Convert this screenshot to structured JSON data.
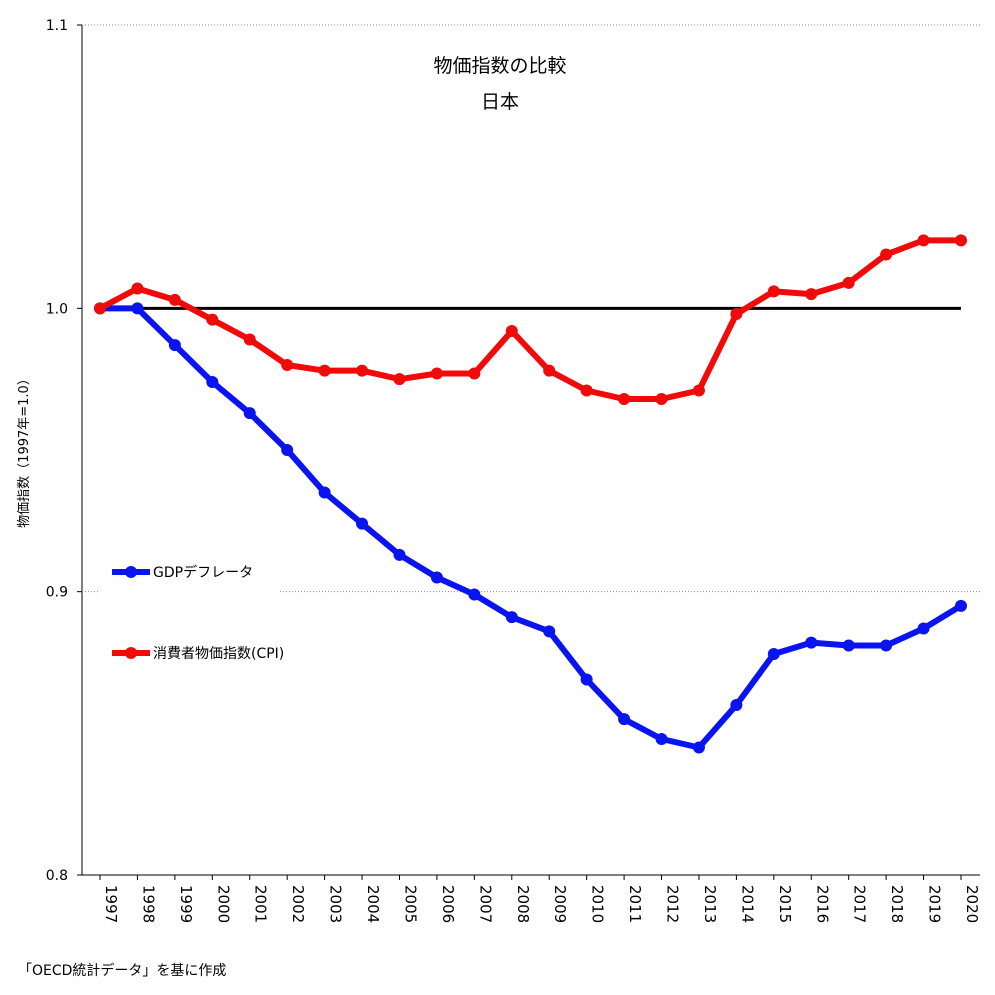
{
  "chart_data": {
    "type": "line",
    "title": "物価指数の比較",
    "subtitle": "日本",
    "y_label": "物価指数（1997年=1.0）",
    "footnote": "「OECD統計データ」を基に作成",
    "categories": [
      "1997",
      "1998",
      "1999",
      "2000",
      "2001",
      "2002",
      "2003",
      "2004",
      "2005",
      "2006",
      "2007",
      "2008",
      "2009",
      "2010",
      "2011",
      "2012",
      "2013",
      "2014",
      "2015",
      "2016",
      "2017",
      "2018",
      "2019",
      "2020"
    ],
    "series": [
      {
        "name": "GDPデフレータ",
        "color": "#0a14f0",
        "values": [
          1.0,
          1.0,
          0.987,
          0.974,
          0.963,
          0.95,
          0.935,
          0.924,
          0.913,
          0.905,
          0.899,
          0.891,
          0.886,
          0.869,
          0.855,
          0.848,
          0.845,
          0.86,
          0.878,
          0.882,
          0.881,
          0.881,
          0.887,
          0.895
        ]
      },
      {
        "name": "消費者物価指数(CPI)",
        "color": "#f00a0a",
        "values": [
          1.0,
          1.007,
          1.003,
          0.996,
          0.989,
          0.98,
          0.978,
          0.978,
          0.975,
          0.977,
          0.977,
          0.992,
          0.978,
          0.971,
          0.968,
          0.968,
          0.971,
          0.998,
          1.006,
          1.005,
          1.009,
          1.019,
          1.024,
          1.024
        ]
      }
    ],
    "reference_line": 1,
    "ylim": [
      0.8,
      1.1
    ],
    "yticks": [
      0.8,
      0.9,
      {
        "value": 1,
        "label": "1.0"
      },
      1.1
    ],
    "grid": true
  }
}
